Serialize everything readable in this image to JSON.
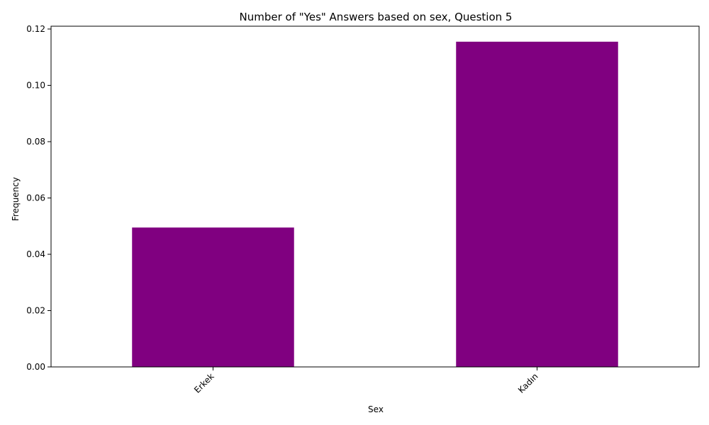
{
  "chart_data": {
    "type": "bar",
    "title": "Number of \"Yes\" Answers based on sex, Question 5",
    "xlabel": "Sex",
    "ylabel": "Frequency",
    "categories": [
      "Erkek",
      "Kadın"
    ],
    "values": [
      0.0495,
      0.1155
    ],
    "ylim": [
      0,
      0.121
    ],
    "yticks": [
      0.0,
      0.02,
      0.04,
      0.06,
      0.08,
      0.1,
      0.12
    ],
    "ytick_labels": [
      "0.00",
      "0.02",
      "0.04",
      "0.06",
      "0.08",
      "0.10",
      "0.12"
    ],
    "bar_color": "#800080",
    "grid": false,
    "legend": "none",
    "xtick_rotation": "45"
  }
}
